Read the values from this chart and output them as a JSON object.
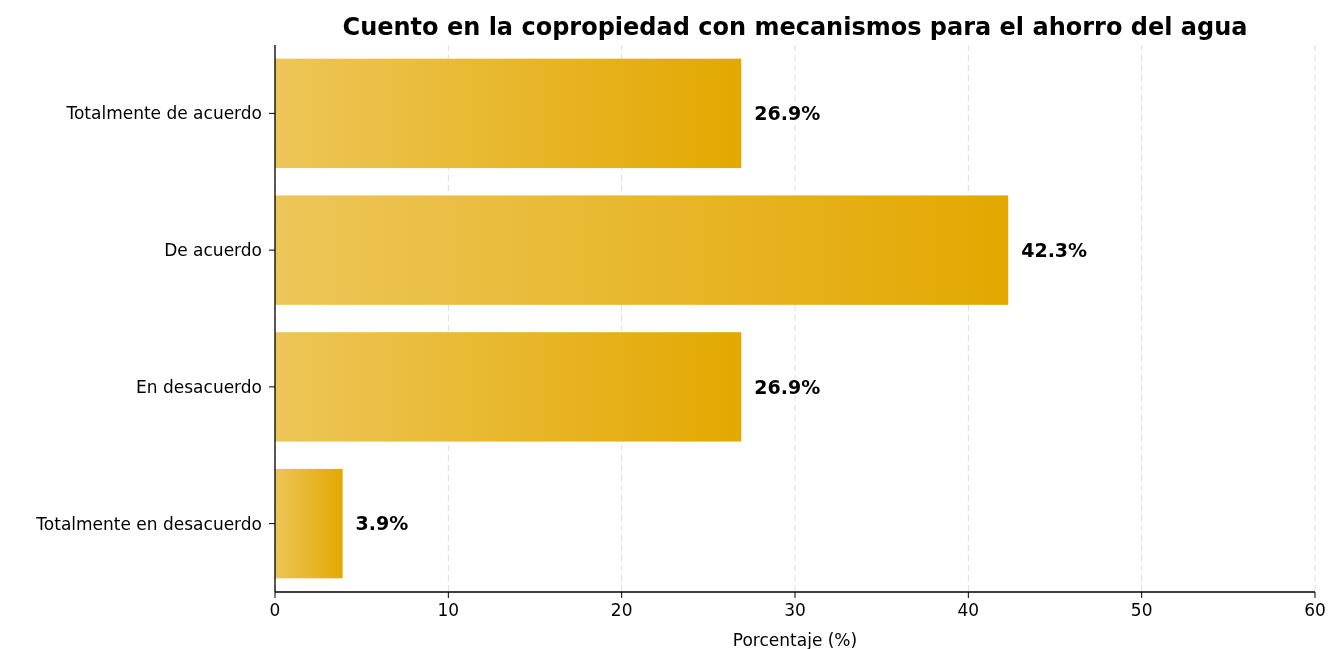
{
  "chart_data": {
    "type": "bar",
    "orientation": "horizontal",
    "title": "Cuento en la copropiedad con mecanismos para el ahorro del agua",
    "xlabel": "Porcentaje (%)",
    "categories": [
      "Totalmente de acuerdo",
      "De acuerdo",
      "En desacuerdo",
      "Totalmente en desacuerdo"
    ],
    "values": [
      26.9,
      42.3,
      26.9,
      3.9
    ],
    "value_labels": [
      "26.9%",
      "42.3%",
      "26.9%",
      "3.9%"
    ],
    "color": "#e3a800",
    "xlim": [
      0,
      60
    ],
    "xticks": [
      0,
      10,
      20,
      30,
      40,
      50,
      60
    ],
    "grid": "x"
  }
}
